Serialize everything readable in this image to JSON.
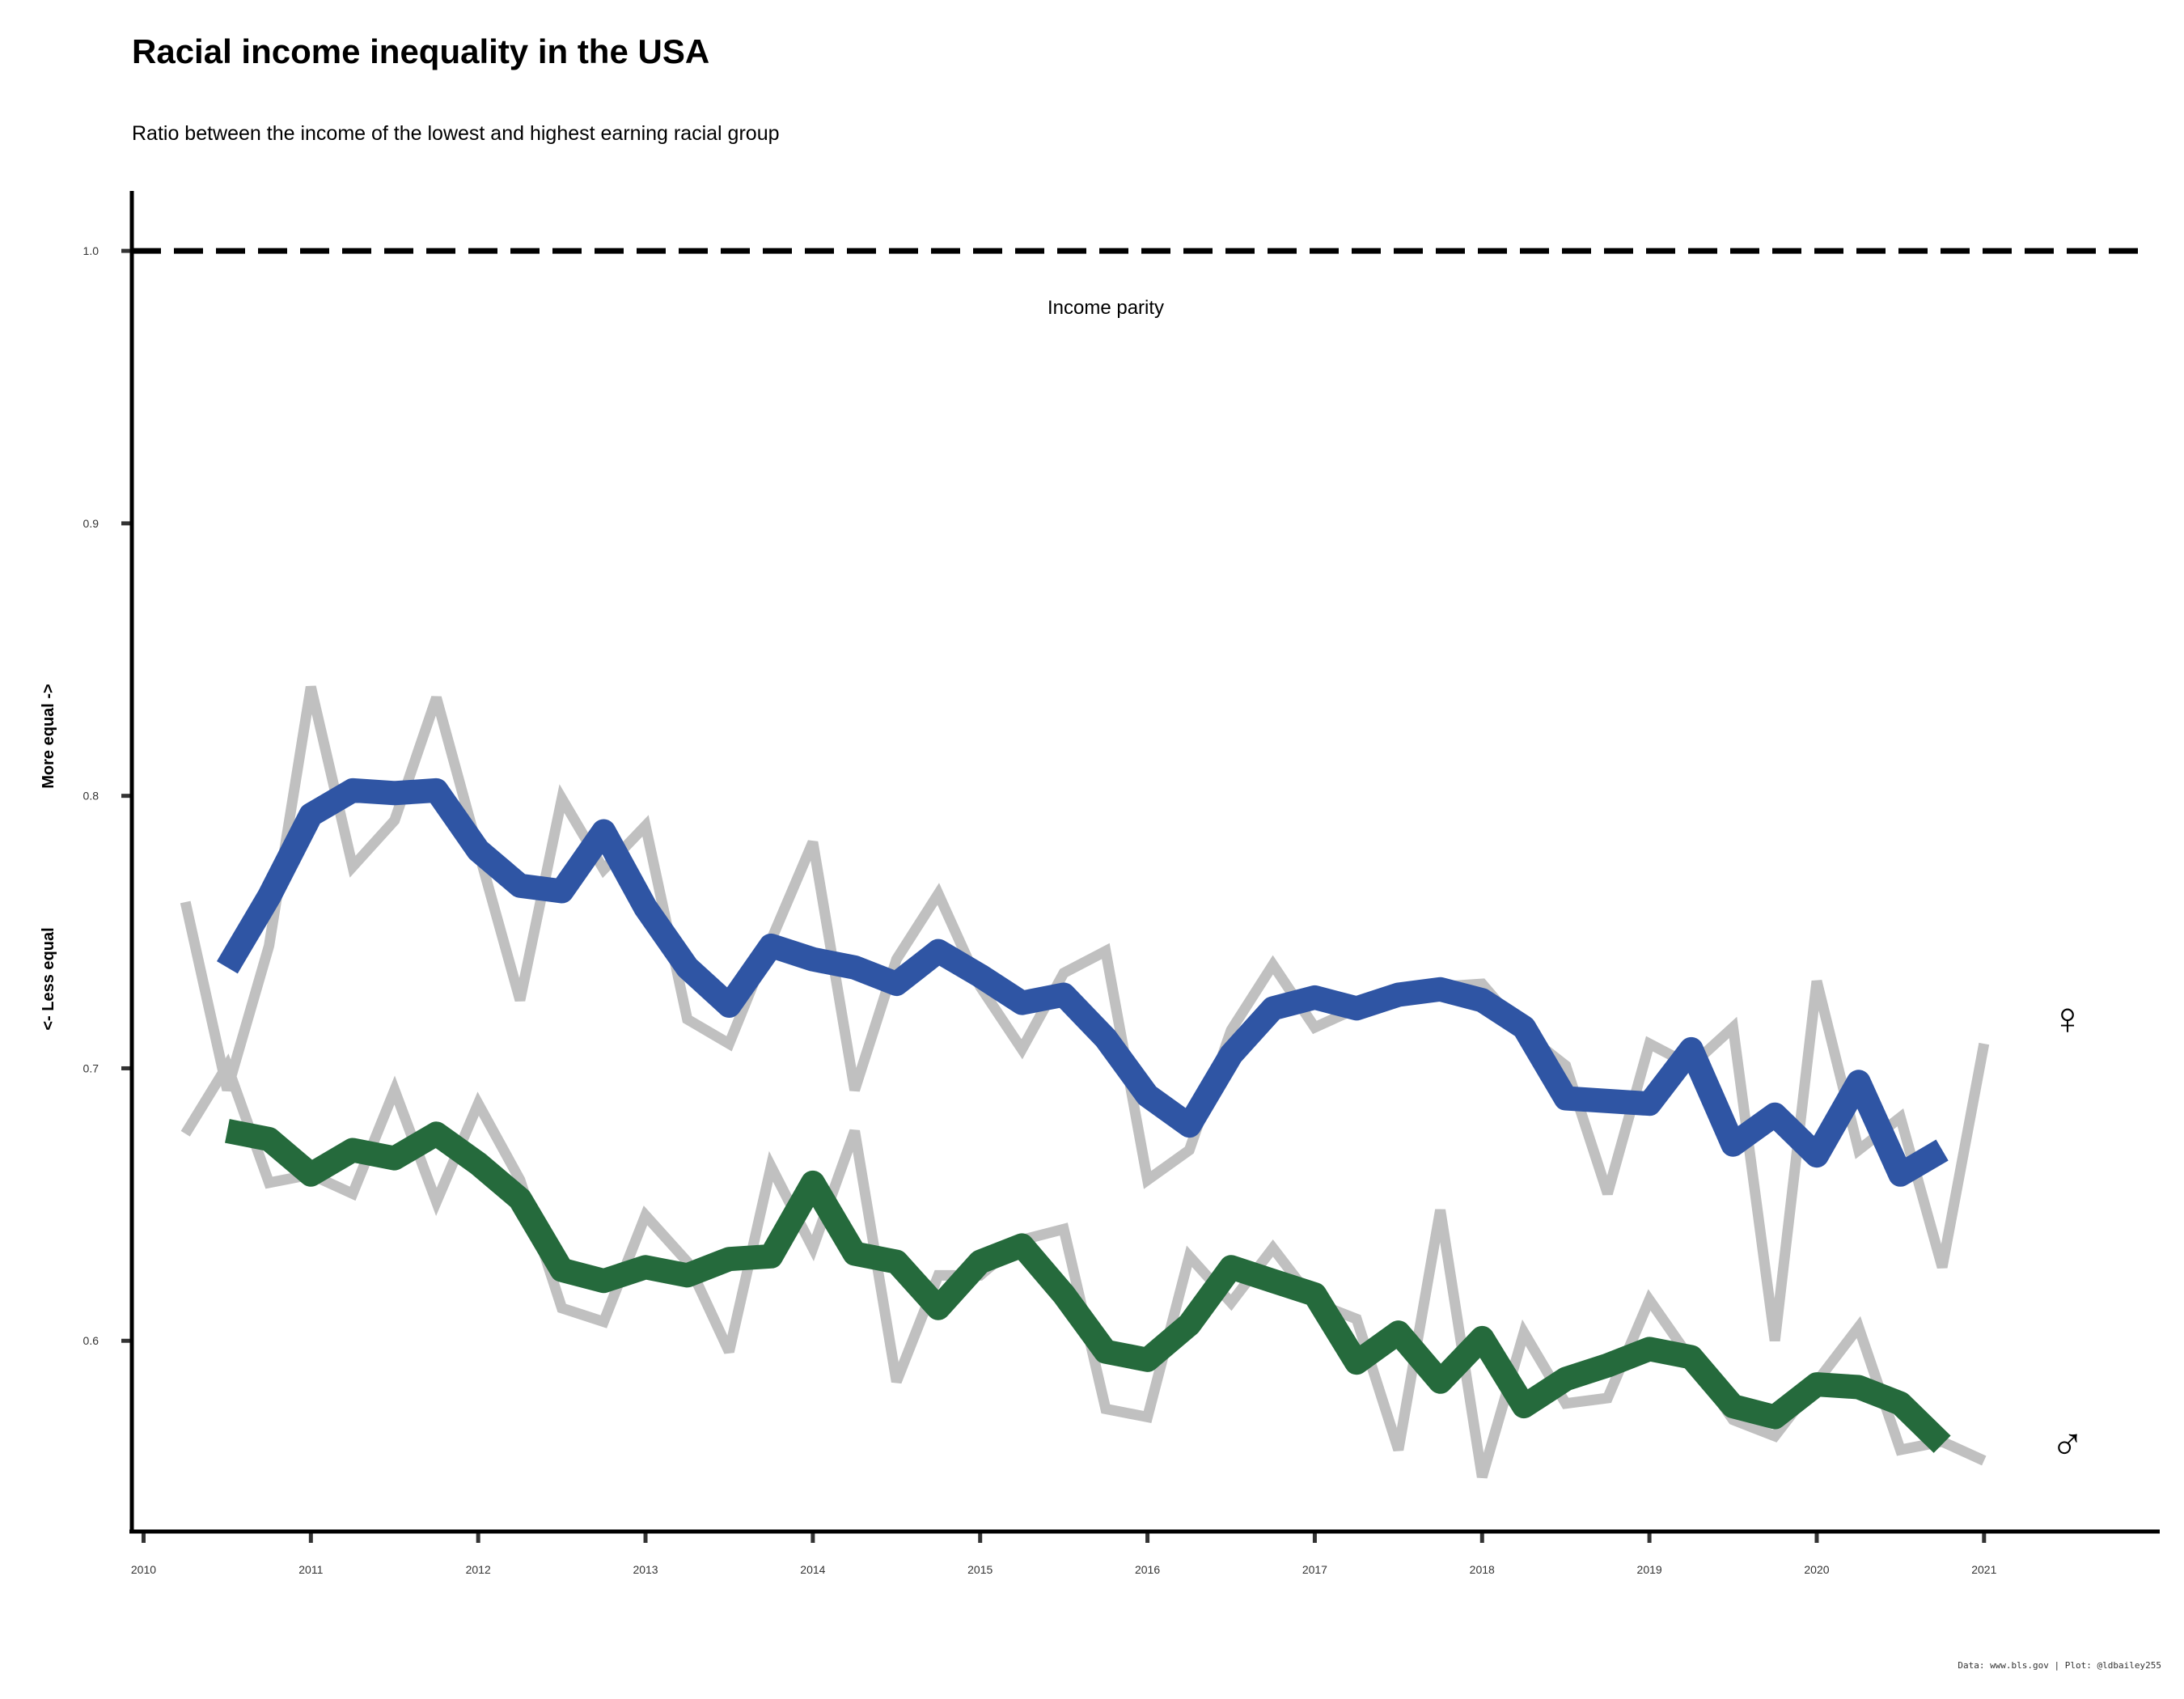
{
  "chart_data": {
    "type": "line",
    "title": "Racial income inequality in the USA",
    "subtitle": "Ratio between the income of the lowest and highest earning racial group",
    "ylabel_top": "More equal ->",
    "ylabel_bottom": "<- Less equal",
    "caption": "Data: www.bls.gov | Plot: @ldbailey255",
    "reference_line": {
      "value": 1.0,
      "label": "Income parity"
    },
    "xlim": [
      2009.93,
      2022.05
    ],
    "ylim": [
      0.53,
      1.022
    ],
    "x_ticks": [
      "2010",
      "2011",
      "2012",
      "2013",
      "2014",
      "2015",
      "2016",
      "2017",
      "2018",
      "2019",
      "2020",
      "2021"
    ],
    "y_ticks": [
      "0.6",
      "0.7",
      "0.8",
      "0.9",
      "1.0"
    ],
    "colors": {
      "women_smoothed": "#2f55a4",
      "men_smoothed": "#256a3c",
      "raw": "#c0c0c0",
      "parity": "#000000"
    },
    "series": [
      {
        "symbol": "♀",
        "style": "smoothed",
        "x": [
          2010.5,
          2010.75,
          2011.0,
          2011.25,
          2011.5,
          2011.75,
          2012.0,
          2012.25,
          2012.5,
          2012.75,
          2013.0,
          2013.25,
          2013.5,
          2013.75,
          2014.0,
          2014.25,
          2014.5,
          2014.75,
          2015.0,
          2015.25,
          2015.5,
          2015.75,
          2016.0,
          2016.25,
          2016.5,
          2016.75,
          2017.0,
          2017.25,
          2017.5,
          2017.75,
          2018.0,
          2018.25,
          2018.5,
          2018.75,
          2019.0,
          2019.25,
          2019.5,
          2019.75,
          2020.0,
          2020.25,
          2020.5,
          2020.75
        ],
        "values": [
          0.737,
          0.763,
          0.793,
          0.802,
          0.801,
          0.802,
          0.78,
          0.767,
          0.765,
          0.787,
          0.759,
          0.737,
          0.723,
          0.745,
          0.74,
          0.737,
          0.731,
          0.743,
          0.734,
          0.724,
          0.727,
          0.711,
          0.69,
          0.679,
          0.705,
          0.722,
          0.726,
          0.722,
          0.727,
          0.729,
          0.725,
          0.715,
          0.689,
          0.688,
          0.687,
          0.707,
          0.672,
          0.683,
          0.668,
          0.695,
          0.661,
          0.67
        ]
      },
      {
        "symbol": "♂",
        "style": "smoothed",
        "x": [
          2010.5,
          2010.75,
          2011.0,
          2011.25,
          2011.5,
          2011.75,
          2012.0,
          2012.25,
          2012.5,
          2012.75,
          2013.0,
          2013.25,
          2013.5,
          2013.75,
          2014.0,
          2014.25,
          2014.5,
          2014.75,
          2015.0,
          2015.25,
          2015.5,
          2015.75,
          2016.0,
          2016.25,
          2016.5,
          2016.75,
          2017.0,
          2017.25,
          2017.5,
          2017.75,
          2018.0,
          2018.25,
          2018.5,
          2018.75,
          2019.0,
          2019.25,
          2019.5,
          2019.75,
          2020.0,
          2020.25,
          2020.5,
          2020.75
        ],
        "values": [
          0.677,
          0.674,
          0.661,
          0.67,
          0.667,
          0.676,
          0.665,
          0.652,
          0.626,
          0.622,
          0.627,
          0.624,
          0.63,
          0.631,
          0.658,
          0.632,
          0.629,
          0.612,
          0.629,
          0.635,
          0.617,
          0.596,
          0.593,
          0.606,
          0.627,
          0.622,
          0.617,
          0.592,
          0.603,
          0.585,
          0.601,
          0.576,
          0.586,
          0.591,
          0.597,
          0.594,
          0.576,
          0.572,
          0.584,
          0.583,
          0.577,
          0.562
        ]
      },
      {
        "style": "raw",
        "x": [
          2010.25,
          2010.5,
          2010.75,
          2011.0,
          2011.25,
          2011.5,
          2011.75,
          2012.0,
          2012.25,
          2012.5,
          2012.75,
          2013.0,
          2013.25,
          2013.5,
          2013.75,
          2014.0,
          2014.25,
          2014.5,
          2014.75,
          2015.0,
          2015.25,
          2015.5,
          2015.75,
          2016.0,
          2016.25,
          2016.5,
          2016.75,
          2017.0,
          2017.25,
          2017.5,
          2017.75,
          2018.0,
          2018.25,
          2018.5,
          2018.75,
          2019.0,
          2019.25,
          2019.5,
          2019.75,
          2020.0,
          2020.25,
          2020.5,
          2020.75,
          2021.0
        ],
        "values": [
          0.761,
          0.692,
          0.745,
          0.84,
          0.774,
          0.791,
          0.836,
          0.78,
          0.725,
          0.799,
          0.773,
          0.789,
          0.718,
          0.709,
          0.747,
          0.783,
          0.692,
          0.74,
          0.764,
          0.73,
          0.707,
          0.735,
          0.743,
          0.659,
          0.67,
          0.714,
          0.738,
          0.715,
          0.722,
          0.727,
          0.73,
          0.731,
          0.713,
          0.701,
          0.654,
          0.709,
          0.701,
          0.715,
          0.6,
          0.732,
          0.67,
          0.682,
          0.627,
          0.709
        ]
      },
      {
        "style": "raw",
        "x": [
          2010.25,
          2010.5,
          2010.75,
          2011.0,
          2011.25,
          2011.5,
          2011.75,
          2012.0,
          2012.25,
          2012.5,
          2012.75,
          2013.0,
          2013.25,
          2013.5,
          2013.75,
          2014.0,
          2014.25,
          2014.5,
          2014.75,
          2015.0,
          2015.25,
          2015.5,
          2015.75,
          2016.0,
          2016.25,
          2016.5,
          2016.75,
          2017.0,
          2017.25,
          2017.5,
          2017.75,
          2018.0,
          2018.25,
          2018.5,
          2018.75,
          2019.0,
          2019.25,
          2019.5,
          2019.75,
          2020.0,
          2020.25,
          2020.5,
          2020.75,
          2021.0
        ],
        "values": [
          0.676,
          0.701,
          0.658,
          0.661,
          0.654,
          0.692,
          0.651,
          0.687,
          0.659,
          0.612,
          0.607,
          0.646,
          0.629,
          0.596,
          0.664,
          0.634,
          0.677,
          0.585,
          0.624,
          0.624,
          0.637,
          0.641,
          0.575,
          0.572,
          0.631,
          0.614,
          0.634,
          0.614,
          0.608,
          0.56,
          0.648,
          0.55,
          0.603,
          0.577,
          0.579,
          0.615,
          0.593,
          0.571,
          0.565,
          0.585,
          0.605,
          0.56,
          0.563,
          0.556
        ]
      }
    ]
  }
}
